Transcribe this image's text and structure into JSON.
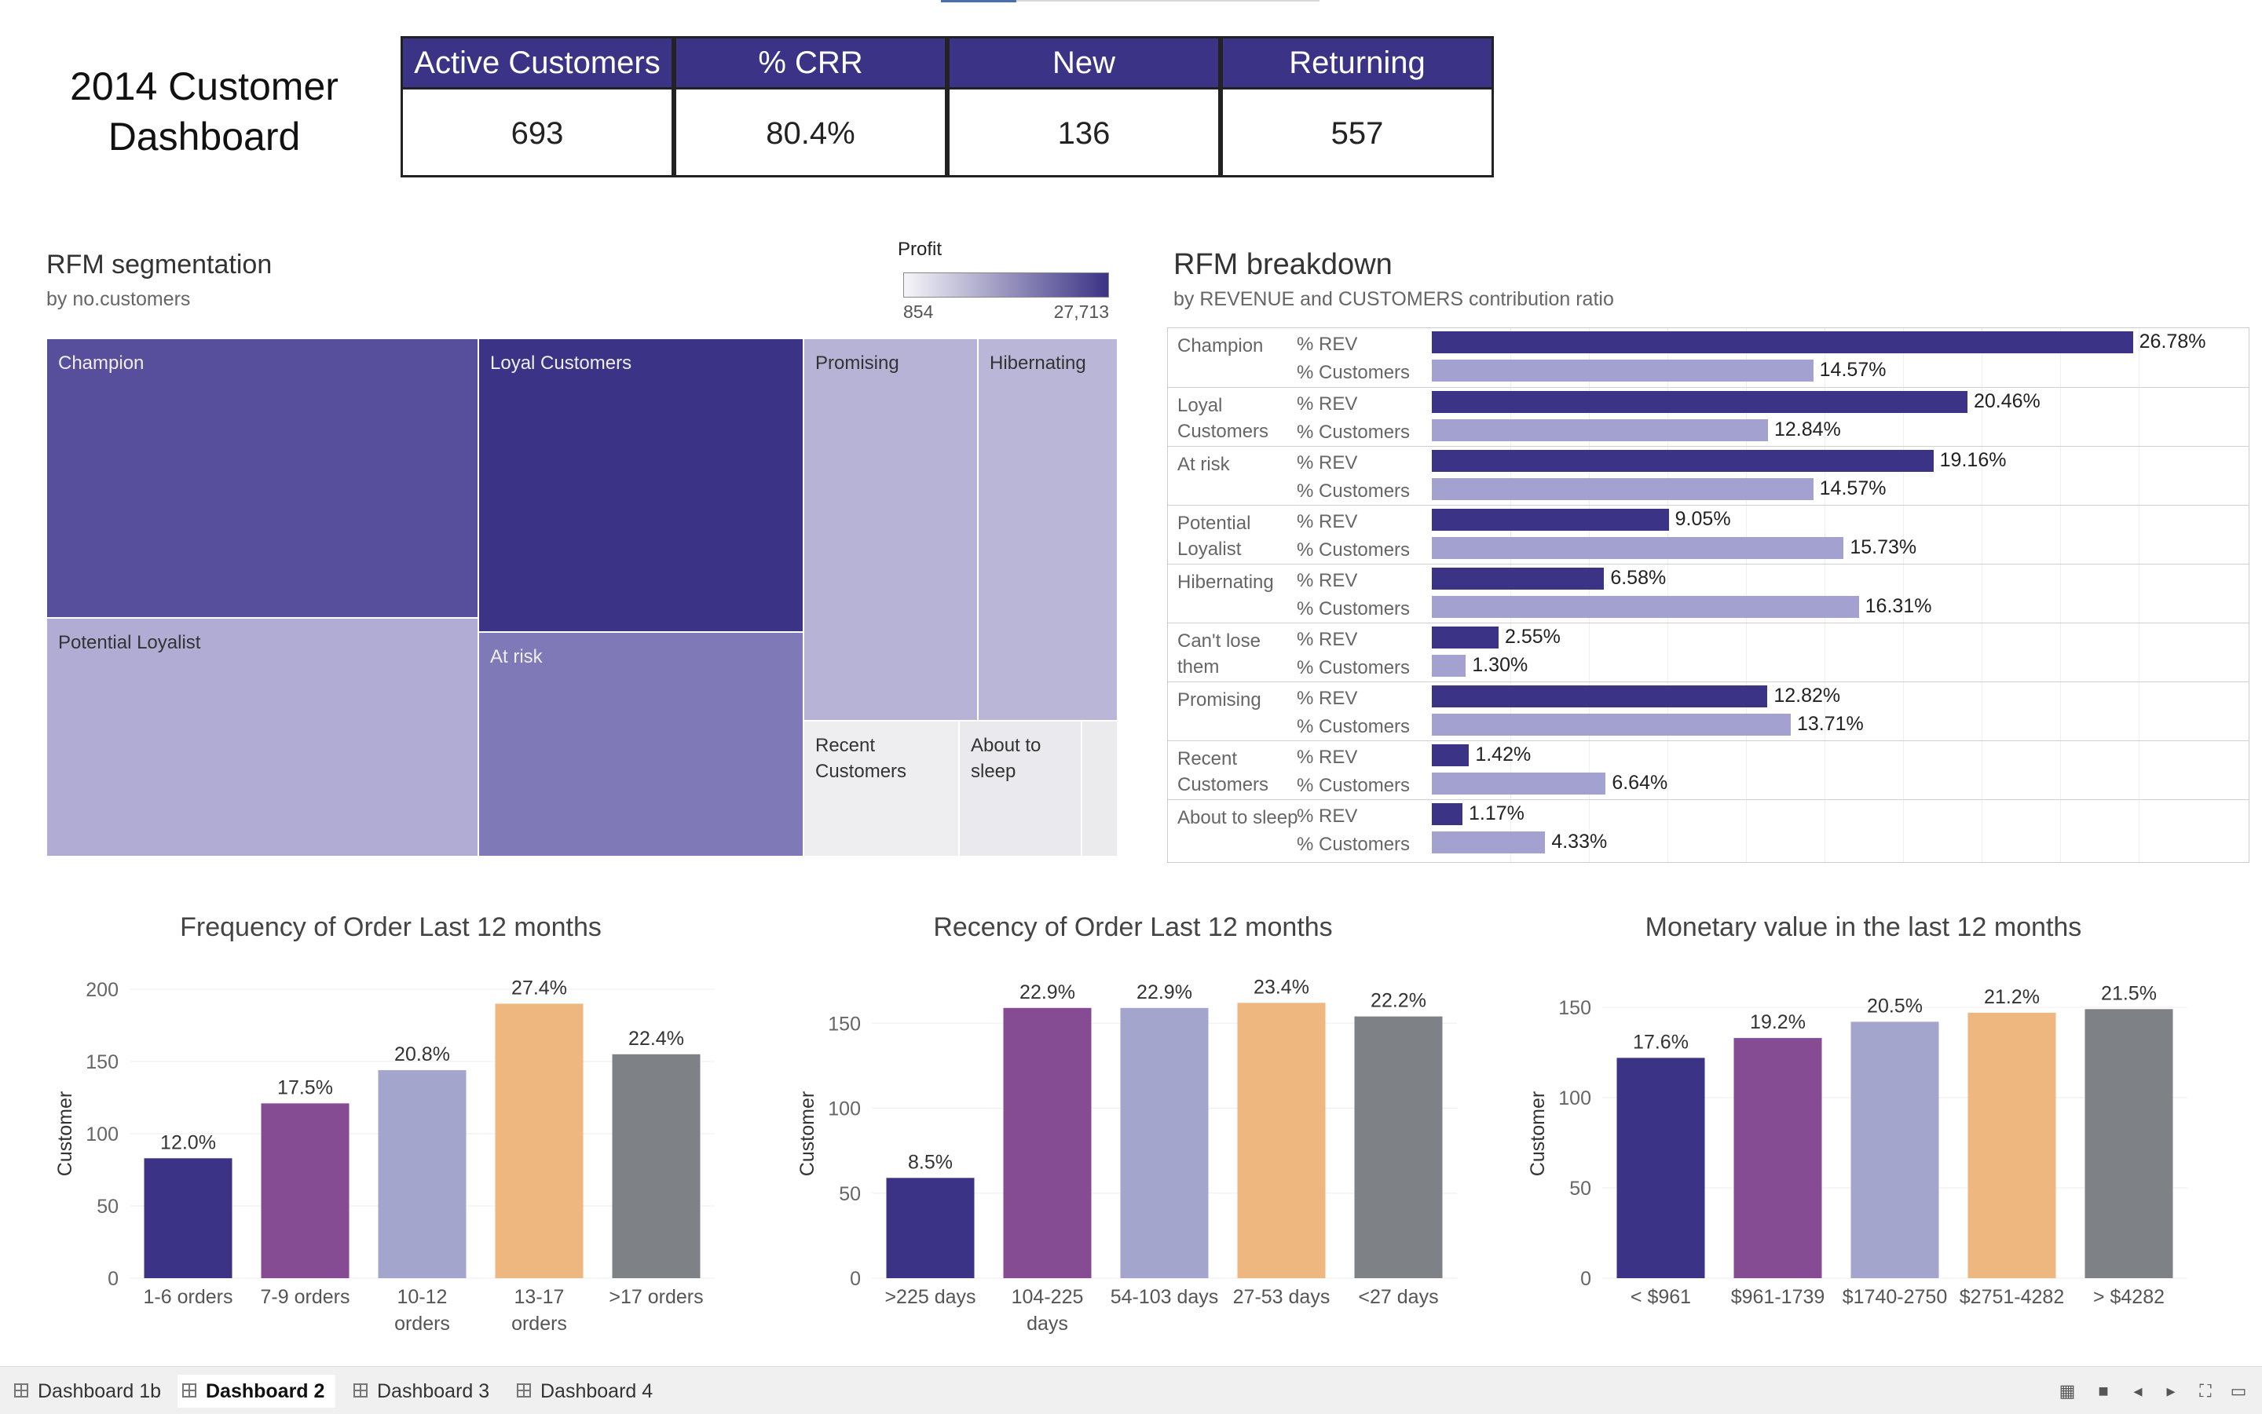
{
  "dashboard_title": "2014 Customer Dashboard",
  "kpis": [
    {
      "label": "Active Customers",
      "value": "693"
    },
    {
      "label": "% CRR",
      "value": "80.4%"
    },
    {
      "label": "New",
      "value": "136"
    },
    {
      "label": "Returning",
      "value": "557"
    }
  ],
  "treemap": {
    "title": "RFM segmentation",
    "subtitle": "by no.customers",
    "legend": {
      "label": "Profit",
      "min": "854",
      "max": "27,713",
      "color_low": "#f6f6f8",
      "color_high": "#3b3385"
    },
    "tiles": [
      {
        "name": "Champion",
        "color": "#574f9c"
      },
      {
        "name": "Loyal Customers",
        "color": "#3b3385"
      },
      {
        "name": "Promising",
        "color": "#b7b3d6"
      },
      {
        "name": "Hibernating",
        "color": "#bab6d8"
      },
      {
        "name": "Potential Loyalist",
        "color": "#b1acd3"
      },
      {
        "name": "At risk",
        "color": "#8079b8"
      },
      {
        "name": "Recent Customers",
        "color": "#eeeef1"
      },
      {
        "name": "About to sleep",
        "color": "#eaeaee"
      },
      {
        "name": "",
        "color": "#ebebee"
      }
    ]
  },
  "breakdown": {
    "title": "RFM breakdown",
    "subtitle": "by REVENUE and CUSTOMERS contribution ratio",
    "measure_rev": "% REV",
    "measure_cust": "% Customers",
    "color_rev": "#3b3385",
    "color_cust": "#a3a1cf",
    "rows": [
      {
        "segment": "Champion",
        "rev": 26.78,
        "rev_label": "26.78%",
        "cust": 14.57,
        "cust_label": "14.57%"
      },
      {
        "segment": "Loyal Customers",
        "rev": 20.46,
        "rev_label": "20.46%",
        "cust": 12.84,
        "cust_label": "12.84%"
      },
      {
        "segment": "At risk",
        "rev": 19.16,
        "rev_label": "19.16%",
        "cust": 14.57,
        "cust_label": "14.57%"
      },
      {
        "segment": "Potential Loyalist",
        "rev": 9.05,
        "rev_label": "9.05%",
        "cust": 15.73,
        "cust_label": "15.73%"
      },
      {
        "segment": "Hibernating",
        "rev": 6.58,
        "rev_label": "6.58%",
        "cust": 16.31,
        "cust_label": "16.31%"
      },
      {
        "segment": "Can't lose them",
        "rev": 2.55,
        "rev_label": "2.55%",
        "cust": 1.3,
        "cust_label": "1.30%"
      },
      {
        "segment": "Promising",
        "rev": 12.82,
        "rev_label": "12.82%",
        "cust": 13.71,
        "cust_label": "13.71%"
      },
      {
        "segment": "Recent Customers",
        "rev": 1.42,
        "rev_label": "1.42%",
        "cust": 6.64,
        "cust_label": "6.64%"
      },
      {
        "segment": "About to sleep",
        "rev": 1.17,
        "rev_label": "1.17%",
        "cust": 4.33,
        "cust_label": "4.33%"
      }
    ]
  },
  "chart_data": [
    {
      "type": "bar",
      "title": "Frequency of Order Last 12 months",
      "ylabel": "Customer",
      "ylim": [
        0,
        200
      ],
      "yticks": [
        0,
        50,
        100,
        150,
        200
      ],
      "categories": [
        [
          "1-6 orders"
        ],
        [
          "7-9 orders"
        ],
        [
          "10-12",
          "orders"
        ],
        [
          "13-17",
          "orders"
        ],
        [
          ">17 orders"
        ]
      ],
      "values": [
        83,
        121,
        144,
        190,
        155
      ],
      "labels": [
        "12.0%",
        "17.5%",
        "20.8%",
        "27.4%",
        "22.4%"
      ],
      "colors": [
        "#3b3385",
        "#854c93",
        "#a3a5cd",
        "#edb77f",
        "#7e8286"
      ]
    },
    {
      "type": "bar",
      "title": "Recency of Order Last 12 months",
      "ylabel": "Customer",
      "ylim": [
        0,
        170
      ],
      "yticks": [
        0,
        50,
        100,
        150
      ],
      "categories": [
        [
          ">225 days"
        ],
        [
          "104-225",
          "days"
        ],
        [
          "54-103 days"
        ],
        [
          "27-53 days"
        ],
        [
          "<27 days"
        ]
      ],
      "values": [
        59,
        159,
        159,
        162,
        154
      ],
      "labels": [
        "8.5%",
        "22.9%",
        "22.9%",
        "23.4%",
        "22.2%"
      ],
      "colors": [
        "#3b3385",
        "#854c93",
        "#a3a5cd",
        "#edb77f",
        "#7e8286"
      ]
    },
    {
      "type": "bar",
      "title": "Monetary value in the last 12 months",
      "ylabel": "Customer",
      "ylim": [
        0,
        160
      ],
      "yticks": [
        0,
        50,
        100,
        150
      ],
      "categories": [
        [
          "< $961"
        ],
        [
          "$961-1739"
        ],
        [
          "$1740-2750"
        ],
        [
          "$2751-4282"
        ],
        [
          "> $4282"
        ]
      ],
      "values": [
        122,
        133,
        142,
        147,
        149
      ],
      "labels": [
        "17.6%",
        "19.2%",
        "20.5%",
        "21.2%",
        "21.5%"
      ],
      "colors": [
        "#3b3385",
        "#854c93",
        "#a3a5cd",
        "#edb77f",
        "#7e8286"
      ]
    }
  ],
  "tabs": [
    {
      "label": "Dashboard 1b",
      "active": false
    },
    {
      "label": "Dashboard 2",
      "active": true
    },
    {
      "label": "Dashboard 3",
      "active": false
    },
    {
      "label": "Dashboard 4",
      "active": false
    }
  ],
  "footer_icons": [
    "grid-view-icon",
    "single-view-icon",
    "prev-icon",
    "next-icon",
    "fullscreen-icon",
    "present-icon"
  ]
}
